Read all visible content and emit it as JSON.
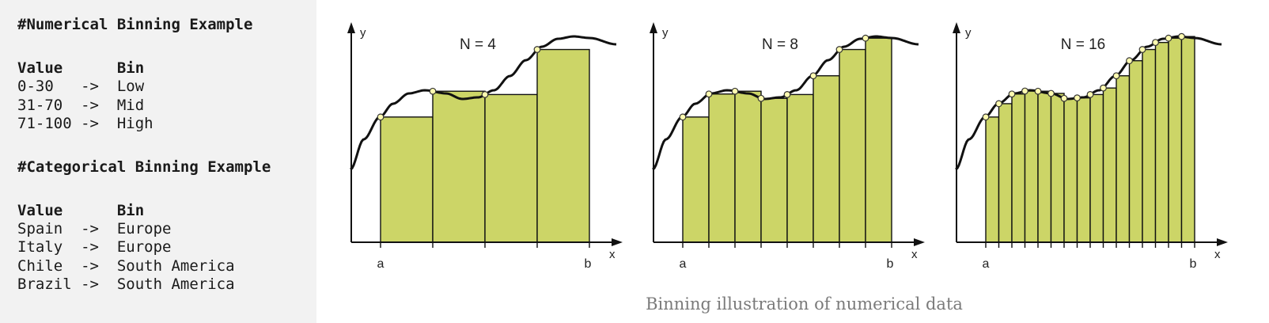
{
  "code": {
    "numerical_heading": "#Numerical Binning Example",
    "numerical_header": "Value      Bin",
    "numerical_rows": [
      "0-30   ->  Low",
      "31-70  ->  Mid",
      "71-100 ->  High"
    ],
    "categorical_heading": "#Categorical Binning Example",
    "categorical_header": "Value      Bin",
    "categorical_rows": [
      "Spain  ->  Europe",
      "Italy  ->  Europe",
      "Chile  ->  South America",
      "Brazil ->  South America"
    ]
  },
  "figure": {
    "caption": "Binning illustration of numerical data",
    "colors": {
      "bar": "#ccd567",
      "curve": "#111111",
      "point": "#fffbb0"
    },
    "panels": [
      {
        "label": "N = 4",
        "n": 4,
        "x_label": "x",
        "y_label": "y",
        "a_label": "a",
        "b_label": "b"
      },
      {
        "label": "N = 8",
        "n": 8,
        "x_label": "x",
        "y_label": "y",
        "a_label": "a",
        "b_label": "b"
      },
      {
        "label": "N = 16",
        "n": 16,
        "x_label": "x",
        "y_label": "y",
        "a_label": "a",
        "b_label": "b"
      }
    ]
  }
}
